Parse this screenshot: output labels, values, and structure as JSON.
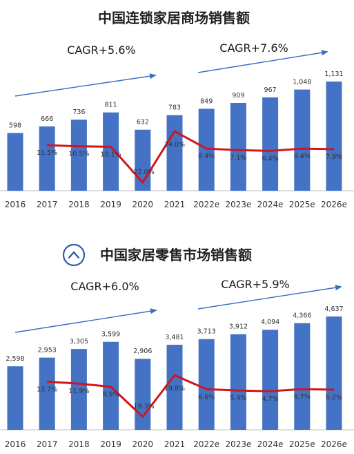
{
  "colors": {
    "bar": "#4472c4",
    "line": "#d0161b",
    "arrow": "#3a6fbf",
    "icon": "#2e5ca8",
    "axis": "#bfbfbf"
  },
  "icon": "chevron-up-circle-icon",
  "charts": [
    {
      "chart_data": {
        "type": "bar",
        "title": "中国连锁家居商场销售额",
        "categories": [
          "2016",
          "2017",
          "2018",
          "2019",
          "2020",
          "2021",
          "2022e",
          "2023e",
          "2024e",
          "2025e",
          "2026e"
        ],
        "series": [
          {
            "values": [
              598,
              666,
              736,
              811,
              632,
              783,
              849,
              909,
              967,
              1048,
              1131
            ],
            "labels": [
              "598",
              "666",
              "736",
              "811",
              "632",
              "783",
              "849",
              "909",
              "967",
              "1,048",
              "1,131"
            ]
          },
          {
            "type": "line",
            "values": [
              null,
              11.5,
              10.5,
              10.1,
              -22.0,
              24.0,
              8.4,
              7.1,
              6.4,
              8.4,
              7.9
            ],
            "labels": [
              "",
              "11.5%",
              "10.5%",
              "10.1%",
              "-22.0%",
              "24.0%",
              "8.4%",
              "7.1%",
              "6.4%",
              "8.4%",
              "7.9%"
            ]
          }
        ],
        "annotations": [
          "CAGR+5.6%",
          "CAGR+7.6%"
        ]
      }
    },
    {
      "chart_data": {
        "type": "bar",
        "title": "中国家居零售市场销售额",
        "categories": [
          "2016",
          "2017",
          "2018",
          "2019",
          "2020",
          "2021",
          "2022e",
          "2023e",
          "2024e",
          "2025e",
          "2026e"
        ],
        "series": [
          {
            "values": [
              2598,
              2953,
              3305,
              3599,
              2906,
              3481,
              3713,
              3912,
              4094,
              4366,
              4637
            ],
            "labels": [
              "2,598",
              "2,953",
              "3,305",
              "3,599",
              "2,906",
              "3,481",
              "3,713",
              "3,912",
              "4,094",
              "4,366",
              "4,637"
            ]
          },
          {
            "type": "line",
            "values": [
              null,
              13.7,
              11.9,
              8.9,
              -19.3,
              19.8,
              6.6,
              5.4,
              4.7,
              6.7,
              6.2
            ],
            "labels": [
              "",
              "13.7%",
              "11.9%",
              "8.9%",
              "-19.3%",
              "19.8%",
              "6.6%",
              "5.4%",
              "4.7%",
              "6.7%",
              "6.2%"
            ]
          }
        ],
        "annotations": [
          "CAGR+6.0%",
          "CAGR+5.9%"
        ]
      }
    }
  ]
}
